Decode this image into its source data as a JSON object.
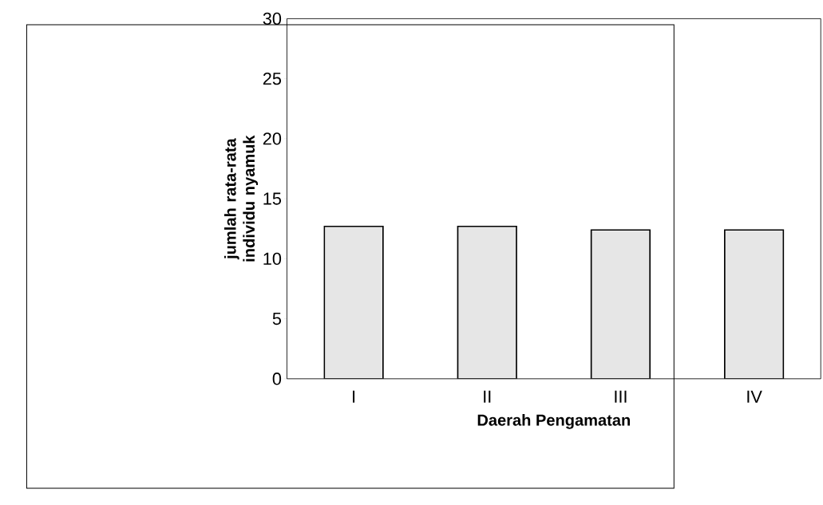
{
  "chart_data": {
    "type": "bar",
    "xlabel": "Daerah Pengamatan",
    "ylabel": "jumlah rata-rata individu nyamuk",
    "categories": [
      "I",
      "II",
      "III",
      "IV"
    ],
    "values": [
      12.7,
      12.7,
      12.4,
      12.4
    ],
    "color": "#e6e6e6",
    "ylim": [
      0,
      30
    ],
    "yticks": [
      0,
      5,
      10,
      15,
      20,
      25,
      30
    ]
  }
}
